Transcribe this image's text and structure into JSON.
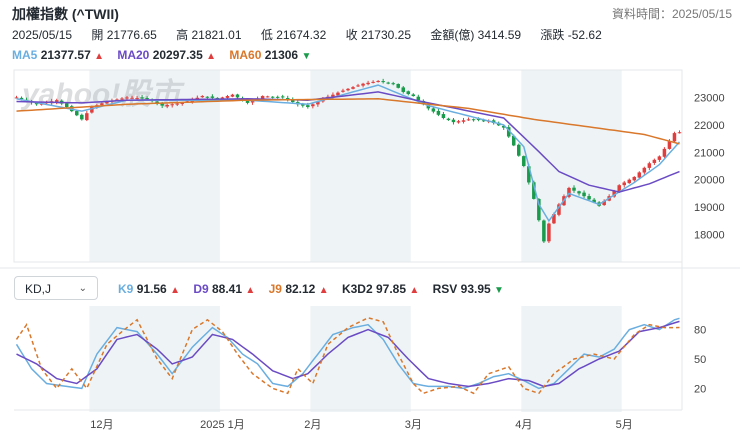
{
  "header": {
    "title": "加權指數 (^TWII)",
    "data_time": "資料時間：2025/05/15",
    "date": "2025/05/15",
    "open": "開 21776.65",
    "high": "高 21821.01",
    "low": "低 21674.32",
    "close": "收 21730.25",
    "amount": "金額(億) 3414.59",
    "change": "漲跌 -52.62"
  },
  "ma_legend": [
    {
      "label": "MA5",
      "value": "21377.57",
      "dir": "up",
      "color": "#6aaee0"
    },
    {
      "label": "MA20",
      "value": "20297.35",
      "dir": "up",
      "color": "#6a4bc4"
    },
    {
      "label": "MA60",
      "value": "21306",
      "dir": "down",
      "color": "#d9772b"
    }
  ],
  "kd_select": {
    "value": "KD,J",
    "icon": "chevron-down-icon"
  },
  "kd_legend": [
    {
      "label": "K9",
      "value": "91.56",
      "dir": "up",
      "color": "#6aaee0"
    },
    {
      "label": "D9",
      "value": "88.41",
      "dir": "up",
      "color": "#6a4bc4"
    },
    {
      "label": "J9",
      "value": "82.12",
      "dir": "up",
      "color": "#d9772b"
    },
    {
      "label": "K3D2",
      "value": "97.85",
      "dir": "up",
      "color": "#232a31"
    },
    {
      "label": "RSV",
      "value": "93.95",
      "dir": "down",
      "color": "#232a31"
    }
  ],
  "watermark": "yahoo!股市",
  "colors": {
    "up": "#e03e3e",
    "down": "#1a9b4b",
    "shade": "#eef4f6",
    "ma5": "#6aaee0",
    "ma20": "#6a4bc4",
    "ma60": "#d9772b"
  },
  "chart_data": [
    {
      "type": "candlestick",
      "title": "加權指數 (^TWII)",
      "y_ticks": [
        "23000",
        "22000",
        "21000",
        "20000",
        "19000",
        "18000"
      ],
      "y_tick_values": [
        23000,
        22000,
        21000,
        20000,
        19000,
        18000
      ],
      "ylim": [
        17000,
        24000
      ],
      "x_ticks": [
        {
          "label": "12月",
          "index": 17
        },
        {
          "label": "2025 1月",
          "index": 41
        },
        {
          "label": "2月",
          "index": 59
        },
        {
          "label": "3月",
          "index": 79
        },
        {
          "label": "4月",
          "index": 101
        },
        {
          "label": "5月",
          "index": 121
        }
      ],
      "shaded_ranges": [
        [
          15,
          41
        ],
        [
          59,
          79
        ],
        [
          101,
          121
        ]
      ],
      "n": 133,
      "close_anchors": [
        [
          0,
          23000
        ],
        [
          4,
          22750
        ],
        [
          8,
          22900
        ],
        [
          10,
          22650
        ],
        [
          13,
          22200
        ],
        [
          15,
          22650
        ],
        [
          18,
          22850
        ],
        [
          22,
          23000
        ],
        [
          26,
          22950
        ],
        [
          29,
          22700
        ],
        [
          33,
          22800
        ],
        [
          37,
          23050
        ],
        [
          40,
          22950
        ],
        [
          43,
          23100
        ],
        [
          46,
          22800
        ],
        [
          49,
          23050
        ],
        [
          53,
          23000
        ],
        [
          56,
          22750
        ],
        [
          58,
          22650
        ],
        [
          61,
          22950
        ],
        [
          65,
          23250
        ],
        [
          69,
          23500
        ],
        [
          72,
          23600
        ],
        [
          75,
          23500
        ],
        [
          77,
          23200
        ],
        [
          79,
          23050
        ],
        [
          82,
          22600
        ],
        [
          85,
          22250
        ],
        [
          87,
          22100
        ],
        [
          90,
          22200
        ],
        [
          94,
          22150
        ],
        [
          97,
          21900
        ],
        [
          99,
          21250
        ],
        [
          101,
          20500
        ],
        [
          103,
          19300
        ],
        [
          105,
          17750
        ],
        [
          106,
          18400
        ],
        [
          108,
          19100
        ],
        [
          110,
          19700
        ],
        [
          113,
          19400
        ],
        [
          116,
          19050
        ],
        [
          118,
          19400
        ],
        [
          120,
          19800
        ],
        [
          123,
          20100
        ],
        [
          126,
          20600
        ],
        [
          128,
          20850
        ],
        [
          130,
          21400
        ],
        [
          131,
          21700
        ],
        [
          132,
          21730
        ]
      ],
      "ma_anchors": {
        "MA5": [
          [
            0,
            22950
          ],
          [
            13,
            22500
          ],
          [
            22,
            22900
          ],
          [
            46,
            22900
          ],
          [
            58,
            22750
          ],
          [
            72,
            23450
          ],
          [
            82,
            22700
          ],
          [
            97,
            22000
          ],
          [
            101,
            21200
          ],
          [
            104,
            19100
          ],
          [
            106,
            18500
          ],
          [
            110,
            19500
          ],
          [
            116,
            19100
          ],
          [
            123,
            19900
          ],
          [
            128,
            20550
          ],
          [
            132,
            21377.57
          ]
        ],
        "MA20": [
          [
            0,
            22850
          ],
          [
            13,
            22800
          ],
          [
            22,
            22900
          ],
          [
            46,
            22950
          ],
          [
            58,
            22900
          ],
          [
            72,
            23200
          ],
          [
            82,
            22800
          ],
          [
            97,
            22250
          ],
          [
            103,
            21200
          ],
          [
            108,
            20300
          ],
          [
            114,
            19800
          ],
          [
            120,
            19550
          ],
          [
            126,
            19850
          ],
          [
            132,
            20297.35
          ]
        ],
        "MA60": [
          [
            0,
            22500
          ],
          [
            22,
            22750
          ],
          [
            46,
            22900
          ],
          [
            72,
            22950
          ],
          [
            90,
            22600
          ],
          [
            103,
            22200
          ],
          [
            115,
            21900
          ],
          [
            125,
            21650
          ],
          [
            132,
            21306
          ]
        ]
      },
      "series": [
        {
          "name": "MA5",
          "value": "21377.57"
        },
        {
          "name": "MA20",
          "value": "20297.35"
        },
        {
          "name": "MA60",
          "value": "21306"
        }
      ]
    },
    {
      "type": "line",
      "title": "KD,J",
      "y_ticks": [
        "80",
        "50",
        "20"
      ],
      "y_tick_values": [
        80,
        50,
        20
      ],
      "ylim": [
        0,
        100
      ],
      "x_ticks": [
        {
          "label": "12月",
          "index": 17
        },
        {
          "label": "2025 1月",
          "index": 41
        },
        {
          "label": "2月",
          "index": 59
        },
        {
          "label": "3月",
          "index": 79
        },
        {
          "label": "4月",
          "index": 101
        },
        {
          "label": "5月",
          "index": 121
        }
      ],
      "series": [
        {
          "name": "K9",
          "value": "91.56",
          "anchors": [
            [
              0,
              65
            ],
            [
              3,
              40
            ],
            [
              6,
              25
            ],
            [
              10,
              22
            ],
            [
              13,
              20
            ],
            [
              16,
              55
            ],
            [
              20,
              82
            ],
            [
              24,
              78
            ],
            [
              28,
              55
            ],
            [
              31,
              35
            ],
            [
              35,
              62
            ],
            [
              39,
              82
            ],
            [
              42,
              72
            ],
            [
              45,
              55
            ],
            [
              48,
              45
            ],
            [
              51,
              25
            ],
            [
              54,
              22
            ],
            [
              57,
              35
            ],
            [
              60,
              55
            ],
            [
              63,
              75
            ],
            [
              67,
              82
            ],
            [
              70,
              85
            ],
            [
              73,
              70
            ],
            [
              76,
              45
            ],
            [
              79,
              25
            ],
            [
              82,
              22
            ],
            [
              86,
              22
            ],
            [
              89,
              20
            ],
            [
              92,
              25
            ],
            [
              95,
              32
            ],
            [
              98,
              35
            ],
            [
              101,
              28
            ],
            [
              104,
              20
            ],
            [
              107,
              25
            ],
            [
              110,
              40
            ],
            [
              113,
              55
            ],
            [
              116,
              52
            ],
            [
              119,
              60
            ],
            [
              122,
              80
            ],
            [
              125,
              85
            ],
            [
              128,
              80
            ],
            [
              131,
              90
            ],
            [
              132,
              91.56
            ]
          ]
        },
        {
          "name": "D9",
          "value": "88.41",
          "anchors": [
            [
              0,
              55
            ],
            [
              4,
              45
            ],
            [
              8,
              30
            ],
            [
              12,
              25
            ],
            [
              16,
              40
            ],
            [
              20,
              70
            ],
            [
              24,
              75
            ],
            [
              28,
              60
            ],
            [
              31,
              45
            ],
            [
              35,
              52
            ],
            [
              39,
              75
            ],
            [
              43,
              70
            ],
            [
              47,
              55
            ],
            [
              51,
              38
            ],
            [
              55,
              30
            ],
            [
              58,
              35
            ],
            [
              62,
              55
            ],
            [
              66,
              72
            ],
            [
              70,
              80
            ],
            [
              74,
              72
            ],
            [
              78,
              50
            ],
            [
              82,
              30
            ],
            [
              86,
              25
            ],
            [
              90,
              22
            ],
            [
              94,
              25
            ],
            [
              98,
              30
            ],
            [
              102,
              28
            ],
            [
              105,
              22
            ],
            [
              108,
              25
            ],
            [
              112,
              40
            ],
            [
              116,
              50
            ],
            [
              120,
              58
            ],
            [
              124,
              78
            ],
            [
              128,
              82
            ],
            [
              132,
              88.41
            ]
          ]
        },
        {
          "name": "J9",
          "value": "82.12",
          "anchors": [
            [
              0,
              70
            ],
            [
              2,
              85
            ],
            [
              5,
              40
            ],
            [
              8,
              20
            ],
            [
              11,
              40
            ],
            [
              14,
              20
            ],
            [
              18,
              65
            ],
            [
              21,
              78
            ],
            [
              24,
              90
            ],
            [
              28,
              50
            ],
            [
              31,
              30
            ],
            [
              35,
              80
            ],
            [
              38,
              90
            ],
            [
              41,
              78
            ],
            [
              44,
              55
            ],
            [
              47,
              35
            ],
            [
              51,
              20
            ],
            [
              54,
              15
            ],
            [
              56,
              40
            ],
            [
              59,
              25
            ],
            [
              62,
              65
            ],
            [
              66,
              82
            ],
            [
              70,
              92
            ],
            [
              73,
              88
            ],
            [
              76,
              55
            ],
            [
              79,
              25
            ],
            [
              81,
              15
            ],
            [
              84,
              20
            ],
            [
              88,
              22
            ],
            [
              91,
              15
            ],
            [
              94,
              35
            ],
            [
              98,
              42
            ],
            [
              101,
              20
            ],
            [
              104,
              15
            ],
            [
              107,
              35
            ],
            [
              111,
              50
            ],
            [
              115,
              55
            ],
            [
              119,
              50
            ],
            [
              123,
              75
            ],
            [
              126,
              85
            ],
            [
              129,
              82
            ],
            [
              132,
              82.12
            ]
          ]
        }
      ]
    }
  ]
}
